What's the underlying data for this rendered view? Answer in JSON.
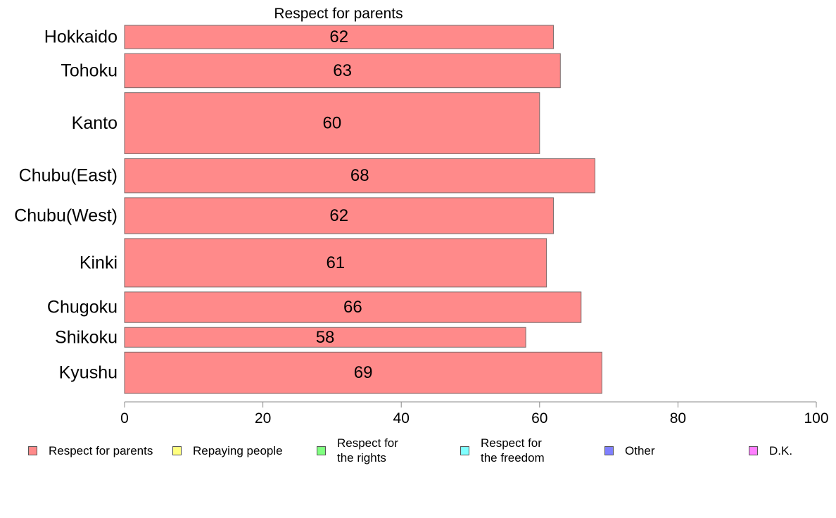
{
  "chart_data": {
    "type": "bar",
    "orientation": "horizontal",
    "title": "Respect for parents",
    "categories": [
      "Hokkaido",
      "Tohoku",
      "Kanto",
      "Chubu(East)",
      "Chubu(West)",
      "Kinki",
      "Chugoku",
      "Shikoku",
      "Kyushu"
    ],
    "values": [
      62,
      63,
      60,
      68,
      62,
      61,
      66,
      58,
      69
    ],
    "bar_weights": [
      0.65,
      0.95,
      1.7,
      0.95,
      1.0,
      1.35,
      0.85,
      0.55,
      1.15
    ],
    "xlim": [
      0,
      100
    ],
    "xticks": [
      0,
      20,
      40,
      60,
      80,
      100
    ],
    "xlabel": "",
    "ylabel": "",
    "grid": false,
    "bar_color": "#ff8a8a",
    "legend_position": "bottom",
    "legend": [
      {
        "label": "Respect for parents",
        "color": "#ff8a8a"
      },
      {
        "label": "Repaying people",
        "color": "#ffff80"
      },
      {
        "label": "Respect for\nthe rights",
        "color": "#80ff80"
      },
      {
        "label": "Respect for\nthe freedom",
        "color": "#80ffff"
      },
      {
        "label": "Other",
        "color": "#8080ff"
      },
      {
        "label": "D.K.",
        "color": "#ff80ff"
      }
    ]
  }
}
